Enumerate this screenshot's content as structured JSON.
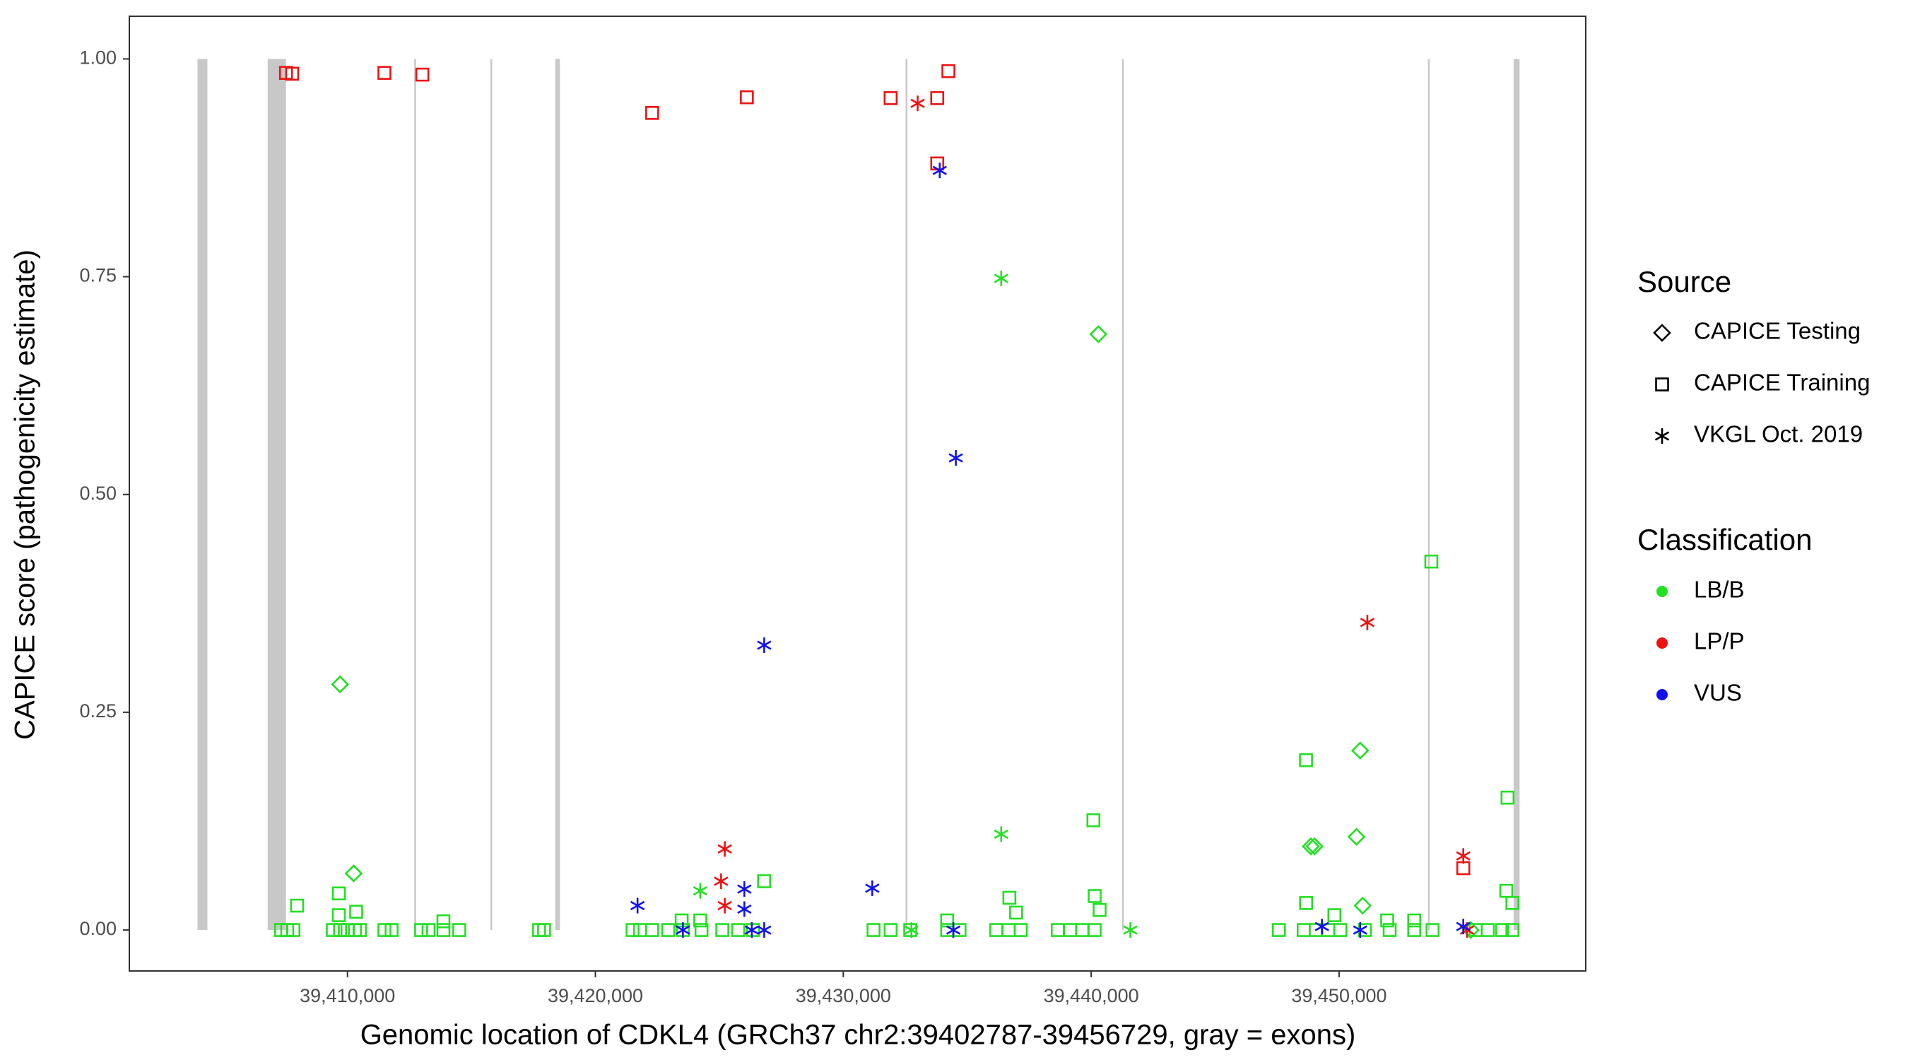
{
  "chart_data": {
    "type": "scatter",
    "x_label": "Genomic location of CDKL4 (GRCh37 chr2:39402787-39456729, gray = exons)",
    "y_label": "CAPICE score (pathogenicity estimate)",
    "xlim": [
      39401200,
      39459950
    ],
    "ylim": [
      -0.047,
      1.049
    ],
    "xticks": [
      {
        "value": 39410000,
        "label": "39,410,000"
      },
      {
        "value": 39420000,
        "label": "39,420,000"
      },
      {
        "value": 39430000,
        "label": "39,430,000"
      },
      {
        "value": 39440000,
        "label": "39,440,000"
      },
      {
        "value": 39450000,
        "label": "39,450,000"
      }
    ],
    "yticks": [
      {
        "value": 0,
        "label": "0.00"
      },
      {
        "value": 0.25,
        "label": "0.25"
      },
      {
        "value": 0.5,
        "label": "0.50"
      },
      {
        "value": 0.75,
        "label": "0.75"
      },
      {
        "value": 1,
        "label": "1.00"
      }
    ],
    "exon_color": "#c8c8c8",
    "exons": [
      {
        "start": 39403950,
        "end": 39404350
      },
      {
        "start": 39406780,
        "end": 39407520
      },
      {
        "start": 39412700,
        "end": 39412760
      },
      {
        "start": 39415770,
        "end": 39415830
      },
      {
        "start": 39418380,
        "end": 39418570
      },
      {
        "start": 39432520,
        "end": 39432580
      },
      {
        "start": 39441250,
        "end": 39441310
      },
      {
        "start": 39453590,
        "end": 39453650
      },
      {
        "start": 39457040,
        "end": 39457280
      }
    ],
    "legends": [
      {
        "title": "Source",
        "items": [
          {
            "label": "CAPICE Testing",
            "shape": "diamond"
          },
          {
            "label": "CAPICE Training",
            "shape": "square"
          },
          {
            "label": "VKGL Oct. 2019",
            "shape": "asterisk"
          }
        ]
      },
      {
        "title": "Classification",
        "items": [
          {
            "label": "LB/B",
            "color": "#22e022"
          },
          {
            "label": "LP/P",
            "color": "#ee1111"
          },
          {
            "label": "VUS",
            "color": "#1111ee"
          }
        ]
      }
    ],
    "series": [
      {
        "source": "CAPICE Training",
        "classification": "LB/B",
        "x": [
          39453720,
          39456794,
          39448665,
          39440090,
          39426805,
          39440140,
          39409653,
          39407968,
          39456744,
          39436700,
          39407320,
          39407570,
          39407820,
          39409410,
          39409700,
          39410000,
          39410300,
          39410500,
          39411490,
          39411780,
          39412970,
          39413270,
          39413870,
          39414510,
          39417730,
          39417930,
          39421500,
          39421800,
          39422290,
          39422940,
          39423530,
          39424280,
          39425120,
          39425760,
          39426360,
          39431220,
          39431910,
          39432700,
          39434190,
          39434690,
          39436170,
          39436670,
          39437160,
          39438650,
          39439150,
          39439640,
          39440140,
          39447570,
          39448570,
          39449060,
          39449560,
          39450050,
          39451040,
          39452040,
          39453030,
          39453770,
          39455510,
          39456000,
          39456580,
          39456990,
          39409650,
          39410350,
          39413870,
          39423480,
          39424230,
          39434190,
          39436970,
          39440340,
          39448670,
          39449810,
          39451940,
          39453030,
          39456990
        ],
        "values": [
          0.423,
          0.152,
          0.195,
          0.126,
          0.056,
          0.039,
          0.042,
          0.028,
          0.045,
          0.037,
          0,
          0,
          0,
          0,
          0,
          0,
          0,
          0,
          0,
          0,
          0,
          0,
          0,
          0,
          0,
          0,
          0,
          0,
          0,
          0,
          0,
          0,
          0,
          0,
          0,
          0,
          0,
          0,
          0,
          0,
          0,
          0,
          0,
          0,
          0,
          0,
          0,
          0,
          0,
          0,
          0,
          0,
          0,
          0,
          0,
          0,
          0,
          0,
          0,
          0,
          0.017,
          0.021,
          0.01,
          0.011,
          0.011,
          0.011,
          0.02,
          0.023,
          0.031,
          0.017,
          0.011,
          0.011,
          0.031
        ]
      },
      {
        "source": "CAPICE Training",
        "classification": "LP/P",
        "x": [
          39407520,
          39407770,
          39411490,
          39413020,
          39422290,
          39426110,
          39431910,
          39433790,
          39434240,
          39433790,
          39455010
        ],
        "values": [
          0.984,
          0.983,
          0.984,
          0.982,
          0.938,
          0.956,
          0.955,
          0.955,
          0.986,
          0.88,
          0.071
        ]
      },
      {
        "source": "CAPICE Testing",
        "classification": "LB/B",
        "x": [
          39409700,
          39410250,
          39440290,
          39450850,
          39450700,
          39448860,
          39449010,
          39450950,
          39455310
        ],
        "values": [
          0.282,
          0.065,
          0.684,
          0.206,
          0.107,
          0.096,
          0.096,
          0.028,
          0
        ]
      },
      {
        "source": "VKGL Oct. 2019",
        "classification": "LB/B",
        "x": [
          39436370,
          39436370,
          39424230,
          39432750,
          39441580
        ],
        "values": [
          0.748,
          0.11,
          0.045,
          0,
          0
        ]
      },
      {
        "source": "VKGL Oct. 2019",
        "classification": "LP/P",
        "x": [
          39433000,
          39425220,
          39425070,
          39425220,
          39451140,
          39455010,
          39455160
        ],
        "values": [
          0.949,
          0.093,
          0.056,
          0.028,
          0.353,
          0.085,
          0
        ]
      },
      {
        "source": "VKGL Oct. 2019",
        "classification": "VUS",
        "x": [
          39433890,
          39434540,
          39426810,
          39421700,
          39423530,
          39426010,
          39426010,
          39426310,
          39426810,
          39431170,
          39434440,
          39449310,
          39450850,
          39455010
        ],
        "values": [
          0.872,
          0.542,
          0.327,
          0.028,
          0,
          0.047,
          0.024,
          0,
          0,
          0.048,
          0,
          0.004,
          0,
          0.004
        ]
      }
    ]
  }
}
